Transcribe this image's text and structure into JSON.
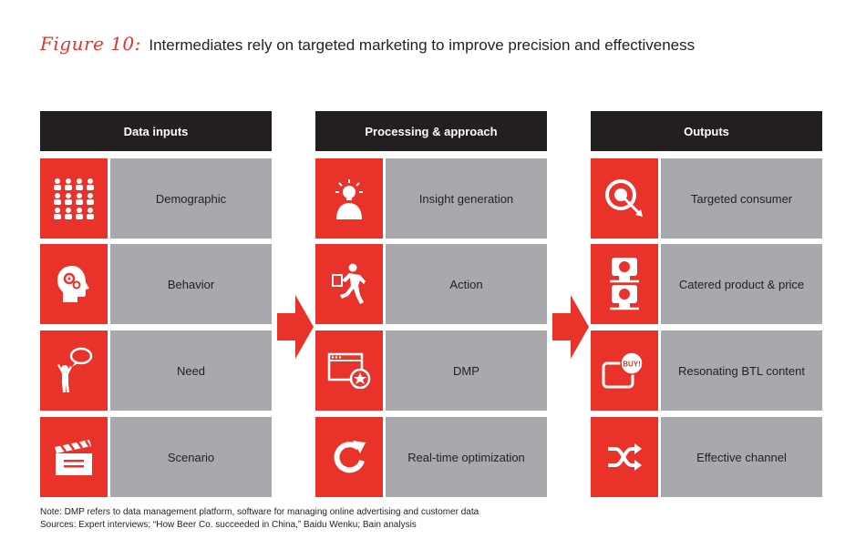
{
  "figure": {
    "label": "Figure 10:",
    "title": "Intermediates rely on targeted marketing to improve precision and effectiveness"
  },
  "columns": [
    {
      "header": "Data inputs",
      "rows": [
        {
          "label": "Demographic",
          "icon": "people-group-icon"
        },
        {
          "label": "Behavior",
          "icon": "head-gears-icon"
        },
        {
          "label": "Need",
          "icon": "person-speech-bubble-icon"
        },
        {
          "label": "Scenario",
          "icon": "clapperboard-icon"
        }
      ]
    },
    {
      "header": "Processing & approach",
      "rows": [
        {
          "label": "Insight generation",
          "icon": "person-lightbulb-icon"
        },
        {
          "label": "Action",
          "icon": "running-person-icon"
        },
        {
          "label": "DMP",
          "icon": "browser-window-star-icon"
        },
        {
          "label": "Real-time optimization",
          "icon": "refresh-arrow-icon"
        }
      ]
    },
    {
      "header": "Outputs",
      "rows": [
        {
          "label": "Targeted consumer",
          "icon": "target-arrow-icon"
        },
        {
          "label": "Catered product & price",
          "icon": "price-tags-icon"
        },
        {
          "label": "Resonating BTL content",
          "icon": "buy-badge-icon"
        },
        {
          "label": "Effective channel",
          "icon": "shuffle-arrows-icon"
        }
      ]
    }
  ],
  "icon_text": {
    "buy": "BUY!"
  },
  "notes": {
    "note": "Note: DMP refers to data management platform, software for managing online advertising and customer data",
    "sources": "Sources: Expert interviews; “How Beer Co. succeeded in China,” Baidu Wenku; Bain analysis"
  },
  "colors": {
    "accent_red": "#e8322a",
    "header_dark": "#231f20",
    "label_gray": "#a7a9ac"
  }
}
